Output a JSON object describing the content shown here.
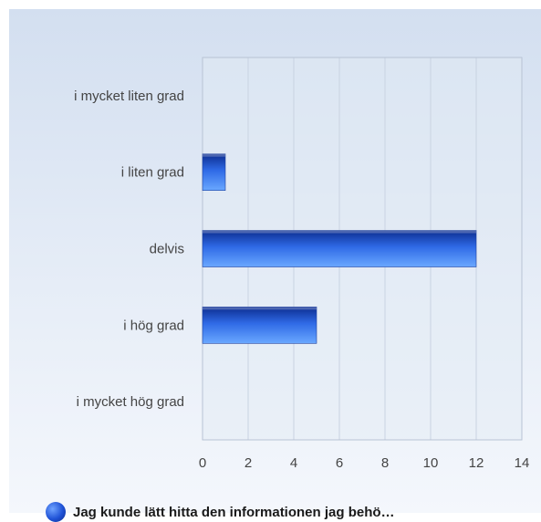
{
  "chart_data": {
    "type": "bar",
    "orientation": "horizontal",
    "categories": [
      "i mycket liten grad",
      "i liten grad",
      "delvis",
      "i hög grad",
      "i mycket hög grad"
    ],
    "series": [
      {
        "name": "Jag kunde lätt hitta den informationen jag behö…",
        "values": [
          0,
          1,
          12,
          5,
          0
        ]
      }
    ],
    "xlim": [
      0,
      14
    ],
    "xticks": [
      "0",
      "2",
      "4",
      "6",
      "8",
      "10",
      "12",
      "14"
    ],
    "grid": true,
    "legend_position": "bottom-left",
    "bar_color": "#2a62e0"
  }
}
